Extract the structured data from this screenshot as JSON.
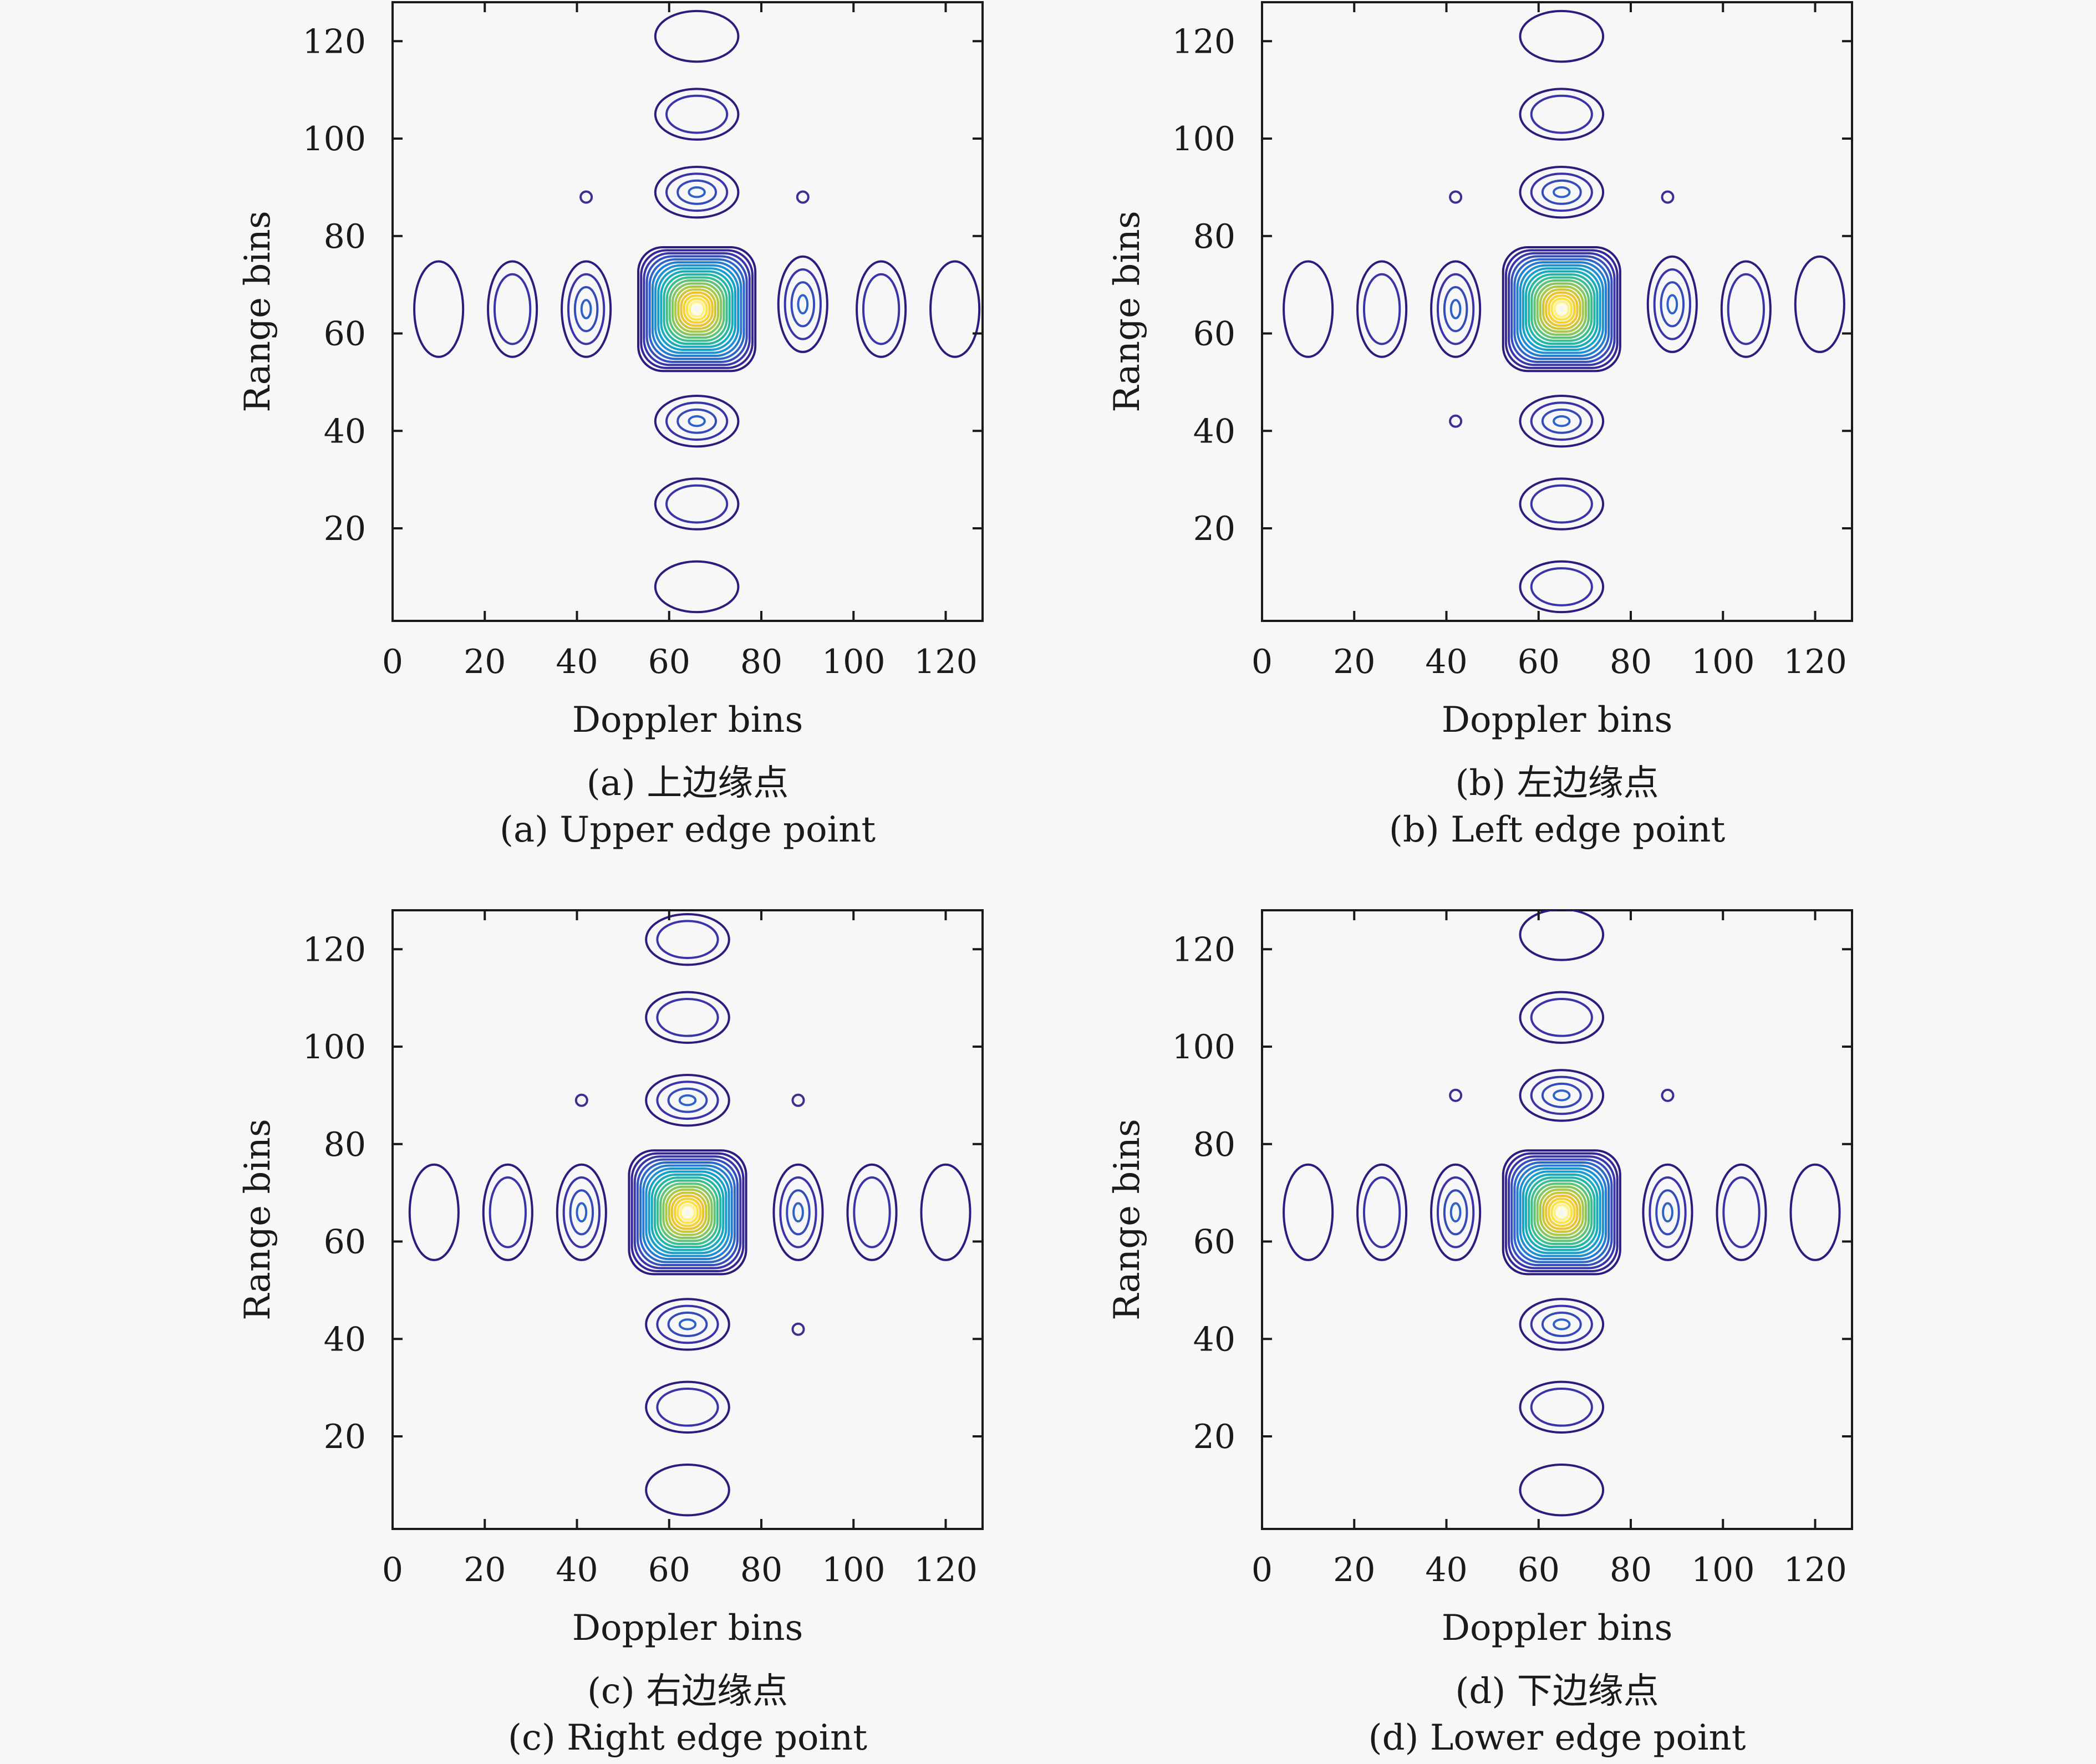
{
  "colors": {
    "background": "#f7f7f7",
    "axis": "#1a1a1a",
    "colormap": [
      "#2d1b7e",
      "#3b34a8",
      "#2f62c8",
      "#1e8bd4",
      "#12a8c4",
      "#29bb9a",
      "#6cc56b",
      "#b5c83e",
      "#f2c22a",
      "#fbe640",
      "#fffdd8"
    ]
  },
  "chart_data": [
    {
      "type": "contour",
      "caption_cn": "(a) 上边缘点",
      "caption_en": "(a) Upper edge point",
      "xlabel": "Doppler bins",
      "ylabel": "Range bins",
      "xlim": [
        0,
        128
      ],
      "ylim": [
        1,
        128
      ],
      "xticks": [
        "0",
        "20",
        "40",
        "60",
        "80",
        "100",
        "120"
      ],
      "yticks": [
        "20",
        "40",
        "60",
        "80",
        "100",
        "120"
      ],
      "peak": [
        66,
        65
      ],
      "main_lobe_rings": 20,
      "sidelobes": [
        {
          "x": 66,
          "y": 121,
          "rings": 1
        },
        {
          "x": 66,
          "y": 105,
          "rings": 2
        },
        {
          "x": 66,
          "y": 89,
          "rings": 4
        },
        {
          "x": 66,
          "y": 42,
          "rings": 4
        },
        {
          "x": 66,
          "y": 25,
          "rings": 2
        },
        {
          "x": 66,
          "y": 8,
          "rings": 1
        },
        {
          "x": 10,
          "y": 65,
          "rings": 1
        },
        {
          "x": 26,
          "y": 65,
          "rings": 2
        },
        {
          "x": 42,
          "y": 65,
          "rings": 4
        },
        {
          "x": 89,
          "y": 66,
          "rings": 4
        },
        {
          "x": 106,
          "y": 65,
          "rings": 2
        },
        {
          "x": 122,
          "y": 65,
          "rings": 1
        }
      ],
      "isolated_points": [
        {
          "x": 42,
          "y": 88
        },
        {
          "x": 89,
          "y": 88
        }
      ]
    },
    {
      "type": "contour",
      "caption_cn": "(b) 左边缘点",
      "caption_en": "(b) Left edge point",
      "xlabel": "Doppler bins",
      "ylabel": "Range bins",
      "xlim": [
        0,
        128
      ],
      "ylim": [
        1,
        128
      ],
      "xticks": [
        "0",
        "20",
        "40",
        "60",
        "80",
        "100",
        "120"
      ],
      "yticks": [
        "20",
        "40",
        "60",
        "80",
        "100",
        "120"
      ],
      "peak": [
        65,
        65
      ],
      "main_lobe_rings": 20,
      "sidelobes": [
        {
          "x": 65,
          "y": 121,
          "rings": 1
        },
        {
          "x": 65,
          "y": 105,
          "rings": 2
        },
        {
          "x": 65,
          "y": 89,
          "rings": 4
        },
        {
          "x": 65,
          "y": 42,
          "rings": 4
        },
        {
          "x": 65,
          "y": 25,
          "rings": 2
        },
        {
          "x": 65,
          "y": 8,
          "rings": 2
        },
        {
          "x": 10,
          "y": 65,
          "rings": 1
        },
        {
          "x": 26,
          "y": 65,
          "rings": 2
        },
        {
          "x": 42,
          "y": 65,
          "rings": 4
        },
        {
          "x": 89,
          "y": 66,
          "rings": 4
        },
        {
          "x": 105,
          "y": 65,
          "rings": 2
        },
        {
          "x": 121,
          "y": 66,
          "rings": 1
        }
      ],
      "isolated_points": [
        {
          "x": 42,
          "y": 88
        },
        {
          "x": 88,
          "y": 88
        },
        {
          "x": 42,
          "y": 42
        }
      ]
    },
    {
      "type": "contour",
      "caption_cn": "(c) 右边缘点",
      "caption_en": "(c) Right edge point",
      "xlabel": "Doppler bins",
      "ylabel": "Range bins",
      "xlim": [
        0,
        128
      ],
      "ylim": [
        1,
        128
      ],
      "xticks": [
        "0",
        "20",
        "40",
        "60",
        "80",
        "100",
        "120"
      ],
      "yticks": [
        "20",
        "40",
        "60",
        "80",
        "100",
        "120"
      ],
      "peak": [
        64,
        66
      ],
      "main_lobe_rings": 20,
      "sidelobes": [
        {
          "x": 64,
          "y": 122,
          "rings": 2
        },
        {
          "x": 64,
          "y": 106,
          "rings": 2
        },
        {
          "x": 64,
          "y": 89,
          "rings": 4
        },
        {
          "x": 64,
          "y": 43,
          "rings": 4
        },
        {
          "x": 64,
          "y": 26,
          "rings": 2
        },
        {
          "x": 64,
          "y": 9,
          "rings": 1
        },
        {
          "x": 9,
          "y": 66,
          "rings": 1
        },
        {
          "x": 25,
          "y": 66,
          "rings": 2
        },
        {
          "x": 41,
          "y": 66,
          "rings": 4
        },
        {
          "x": 88,
          "y": 66,
          "rings": 4
        },
        {
          "x": 104,
          "y": 66,
          "rings": 2
        },
        {
          "x": 120,
          "y": 66,
          "rings": 1
        }
      ],
      "isolated_points": [
        {
          "x": 41,
          "y": 89
        },
        {
          "x": 88,
          "y": 89
        },
        {
          "x": 88,
          "y": 42
        }
      ]
    },
    {
      "type": "contour",
      "caption_cn": "(d) 下边缘点",
      "caption_en": "(d) Lower edge point",
      "xlabel": "Doppler bins",
      "ylabel": "Range bins",
      "xlim": [
        0,
        128
      ],
      "ylim": [
        1,
        128
      ],
      "xticks": [
        "0",
        "20",
        "40",
        "60",
        "80",
        "100",
        "120"
      ],
      "yticks": [
        "20",
        "40",
        "60",
        "80",
        "100",
        "120"
      ],
      "peak": [
        65,
        66
      ],
      "main_lobe_rings": 20,
      "sidelobes": [
        {
          "x": 65,
          "y": 123,
          "rings": 1
        },
        {
          "x": 65,
          "y": 106,
          "rings": 2
        },
        {
          "x": 65,
          "y": 90,
          "rings": 4
        },
        {
          "x": 65,
          "y": 43,
          "rings": 4
        },
        {
          "x": 65,
          "y": 26,
          "rings": 2
        },
        {
          "x": 65,
          "y": 9,
          "rings": 1
        },
        {
          "x": 10,
          "y": 66,
          "rings": 1
        },
        {
          "x": 26,
          "y": 66,
          "rings": 2
        },
        {
          "x": 42,
          "y": 66,
          "rings": 4
        },
        {
          "x": 88,
          "y": 66,
          "rings": 4
        },
        {
          "x": 104,
          "y": 66,
          "rings": 2
        },
        {
          "x": 120,
          "y": 66,
          "rings": 1
        }
      ],
      "isolated_points": [
        {
          "x": 42,
          "y": 90
        },
        {
          "x": 88,
          "y": 90
        }
      ]
    }
  ]
}
